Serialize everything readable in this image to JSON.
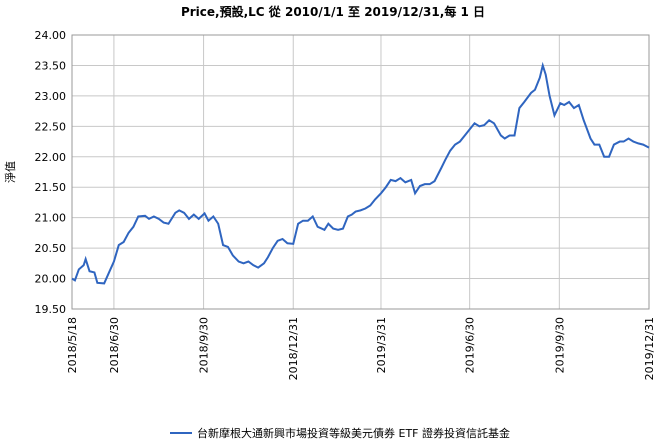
{
  "chart_data": {
    "type": "line",
    "title": "Price,預設,LC 從 2010/1/1 至 2019/12/31,每 1 日",
    "y_label": "淨值",
    "x": [
      "2018/5/18",
      "2018/5/21",
      "2018/5/25",
      "2018/5/30",
      "2018/6/1",
      "2018/6/5",
      "2018/6/10",
      "2018/6/13",
      "2018/6/20",
      "2018/6/25",
      "2018/6/30",
      "2018/7/5",
      "2018/7/10",
      "2018/7/15",
      "2018/7/20",
      "2018/7/25",
      "2018/8/1",
      "2018/8/5",
      "2018/8/10",
      "2018/8/15",
      "2018/8/20",
      "2018/8/25",
      "2018/9/1",
      "2018/9/5",
      "2018/9/10",
      "2018/9/15",
      "2018/9/20",
      "2018/9/25",
      "2018/10/1",
      "2018/10/5",
      "2018/10/10",
      "2018/10/15",
      "2018/10/20",
      "2018/10/25",
      "2018/10/30",
      "2018/11/5",
      "2018/11/10",
      "2018/11/15",
      "2018/11/20",
      "2018/11/25",
      "2018/12/1",
      "2018/12/5",
      "2018/12/10",
      "2018/12/15",
      "2018/12/20",
      "2018/12/25",
      "2018/12/31",
      "2019/1/5",
      "2019/1/10",
      "2019/1/15",
      "2019/1/20",
      "2019/1/25",
      "2019/2/1",
      "2019/2/5",
      "2019/2/10",
      "2019/2/15",
      "2019/2/20",
      "2019/2/25",
      "2019/3/1",
      "2019/3/5",
      "2019/3/10",
      "2019/3/15",
      "2019/3/20",
      "2019/3/25",
      "2019/3/31",
      "2019/4/5",
      "2019/4/10",
      "2019/4/15",
      "2019/4/20",
      "2019/4/25",
      "2019/5/1",
      "2019/5/5",
      "2019/5/10",
      "2019/5/15",
      "2019/5/20",
      "2019/5/25",
      "2019/6/1",
      "2019/6/5",
      "2019/6/10",
      "2019/6/15",
      "2019/6/20",
      "2019/6/25",
      "2019/6/30",
      "2019/7/5",
      "2019/7/10",
      "2019/7/15",
      "2019/7/20",
      "2019/7/25",
      "2019/8/1",
      "2019/8/5",
      "2019/8/10",
      "2019/8/15",
      "2019/8/20",
      "2019/8/25",
      "2019/9/1",
      "2019/9/5",
      "2019/9/10",
      "2019/9/13",
      "2019/9/16",
      "2019/9/20",
      "2019/9/25",
      "2019/10/1",
      "2019/10/5",
      "2019/10/10",
      "2019/10/15",
      "2019/10/20",
      "2019/10/25",
      "2019/11/1",
      "2019/11/5",
      "2019/11/10",
      "2019/11/15",
      "2019/11/20",
      "2019/11/25",
      "2019/12/1",
      "2019/12/5",
      "2019/12/10",
      "2019/12/15",
      "2019/12/20",
      "2019/12/25",
      "2019/12/31"
    ],
    "series": [
      {
        "name": "台新摩根大通新興市場投資等級美元債券 ETF 證券投資信託基金",
        "color": "#2f65c0",
        "values": [
          20.0,
          19.97,
          20.15,
          20.22,
          20.32,
          20.12,
          20.1,
          19.93,
          19.92,
          20.1,
          20.28,
          20.55,
          20.6,
          20.75,
          20.85,
          21.02,
          21.03,
          20.98,
          21.02,
          20.98,
          20.92,
          20.9,
          21.08,
          21.12,
          21.08,
          20.98,
          21.05,
          20.98,
          21.07,
          20.95,
          21.02,
          20.9,
          20.55,
          20.52,
          20.38,
          20.28,
          20.25,
          20.28,
          20.22,
          20.18,
          20.25,
          20.35,
          20.5,
          20.62,
          20.65,
          20.58,
          20.57,
          20.9,
          20.95,
          20.95,
          21.02,
          20.85,
          20.8,
          20.9,
          20.82,
          20.8,
          20.82,
          21.02,
          21.05,
          21.1,
          21.12,
          21.15,
          21.2,
          21.3,
          21.4,
          21.5,
          21.62,
          21.6,
          21.65,
          21.58,
          21.62,
          21.4,
          21.52,
          21.55,
          21.55,
          21.6,
          21.82,
          21.95,
          22.1,
          22.2,
          22.25,
          22.35,
          22.45,
          22.55,
          22.5,
          22.52,
          22.6,
          22.55,
          22.35,
          22.3,
          22.35,
          22.35,
          22.8,
          22.9,
          23.05,
          23.1,
          23.3,
          23.5,
          23.35,
          23.0,
          22.68,
          22.88,
          22.85,
          22.9,
          22.8,
          22.85,
          22.6,
          22.3,
          22.2,
          22.2,
          22.0,
          22.0,
          22.2,
          22.25,
          22.25,
          22.3,
          22.25,
          22.22,
          22.2,
          22.15
        ]
      }
    ],
    "xlim": [
      "2018/5/18",
      "2019/12/31"
    ],
    "xticks": [
      "2018/5/18",
      "2018/6/30",
      "2018/9/30",
      "2018/12/31",
      "2019/3/31",
      "2019/6/30",
      "2019/9/30",
      "2019/12/31"
    ],
    "ylim": [
      19.5,
      24
    ],
    "yticks": [
      {
        "value": 19.5,
        "label": "19.50"
      },
      {
        "value": 20,
        "label": "20.00"
      },
      {
        "value": 20.5,
        "label": "20.50"
      },
      {
        "value": 21,
        "label": "21.00"
      },
      {
        "value": 21.5,
        "label": "21.50"
      },
      {
        "value": 22,
        "label": "22.00"
      },
      {
        "value": 22.5,
        "label": "22.50"
      },
      {
        "value": 23,
        "label": "23.00"
      },
      {
        "value": 23.5,
        "label": "23.50"
      },
      {
        "value": 24,
        "label": "24.00"
      }
    ],
    "grid": true,
    "legend": "bottom"
  }
}
